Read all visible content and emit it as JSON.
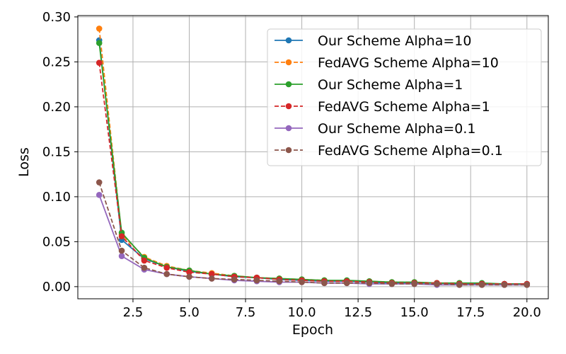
{
  "chart_data": {
    "type": "line",
    "title": "",
    "xlabel": "Epoch",
    "ylabel": "Loss",
    "xlim": [
      0.05,
      20.95
    ],
    "ylim": [
      -0.0135,
      0.3015
    ],
    "xticks": [
      2.5,
      5.0,
      7.5,
      10.0,
      12.5,
      15.0,
      17.5,
      20.0
    ],
    "xtick_labels": [
      "2.5",
      "5.0",
      "7.5",
      "10.0",
      "12.5",
      "15.0",
      "17.5",
      "20.0"
    ],
    "yticks": [
      0.0,
      0.05,
      0.1,
      0.15,
      0.2,
      0.25,
      0.3
    ],
    "ytick_labels": [
      "0.00",
      "0.05",
      "0.10",
      "0.15",
      "0.20",
      "0.25",
      "0.30"
    ],
    "grid": true,
    "legend_position": "top-right",
    "x": [
      1,
      2,
      3,
      4,
      5,
      6,
      7,
      8,
      9,
      10,
      11,
      12,
      13,
      14,
      15,
      16,
      17,
      18,
      19,
      20
    ],
    "series": [
      {
        "name": "Our Scheme Alpha=10",
        "color": "#1f77b4",
        "linestyle": "solid",
        "values": [
          0.274,
          0.052,
          0.031,
          0.022,
          0.017,
          0.014,
          0.011,
          0.01,
          0.008,
          0.007,
          0.006,
          0.006,
          0.005,
          0.004,
          0.004,
          0.004,
          0.003,
          0.003,
          0.003,
          0.003
        ]
      },
      {
        "name": "FedAVG Scheme Alpha=10",
        "color": "#ff7f0e",
        "linestyle": "dashed",
        "values": [
          0.287,
          0.058,
          0.033,
          0.023,
          0.018,
          0.015,
          0.012,
          0.01,
          0.009,
          0.008,
          0.007,
          0.006,
          0.006,
          0.005,
          0.005,
          0.004,
          0.004,
          0.003,
          0.003,
          0.003
        ]
      },
      {
        "name": "Our Scheme Alpha=1",
        "color": "#2ca02c",
        "linestyle": "solid",
        "values": [
          0.271,
          0.06,
          0.032,
          0.022,
          0.018,
          0.014,
          0.012,
          0.01,
          0.009,
          0.008,
          0.007,
          0.007,
          0.006,
          0.005,
          0.005,
          0.004,
          0.004,
          0.004,
          0.003,
          0.003
        ]
      },
      {
        "name": "FedAVG Scheme Alpha=1",
        "color": "#d62728",
        "linestyle": "dashed",
        "values": [
          0.249,
          0.056,
          0.029,
          0.021,
          0.016,
          0.014,
          0.011,
          0.01,
          0.008,
          0.007,
          0.006,
          0.006,
          0.005,
          0.004,
          0.004,
          0.004,
          0.003,
          0.003,
          0.003,
          0.003
        ]
      },
      {
        "name": "Our Scheme Alpha=0.1",
        "color": "#9467bd",
        "linestyle": "solid",
        "values": [
          0.102,
          0.034,
          0.019,
          0.014,
          0.011,
          0.009,
          0.007,
          0.006,
          0.005,
          0.005,
          0.004,
          0.004,
          0.003,
          0.003,
          0.003,
          0.002,
          0.002,
          0.002,
          0.002,
          0.002
        ]
      },
      {
        "name": "FedAVG Scheme Alpha=0.1",
        "color": "#8c564b",
        "linestyle": "dashed",
        "values": [
          0.116,
          0.04,
          0.021,
          0.014,
          0.011,
          0.009,
          0.008,
          0.007,
          0.006,
          0.005,
          0.004,
          0.004,
          0.004,
          0.003,
          0.003,
          0.003,
          0.002,
          0.002,
          0.002,
          0.002
        ]
      }
    ]
  }
}
